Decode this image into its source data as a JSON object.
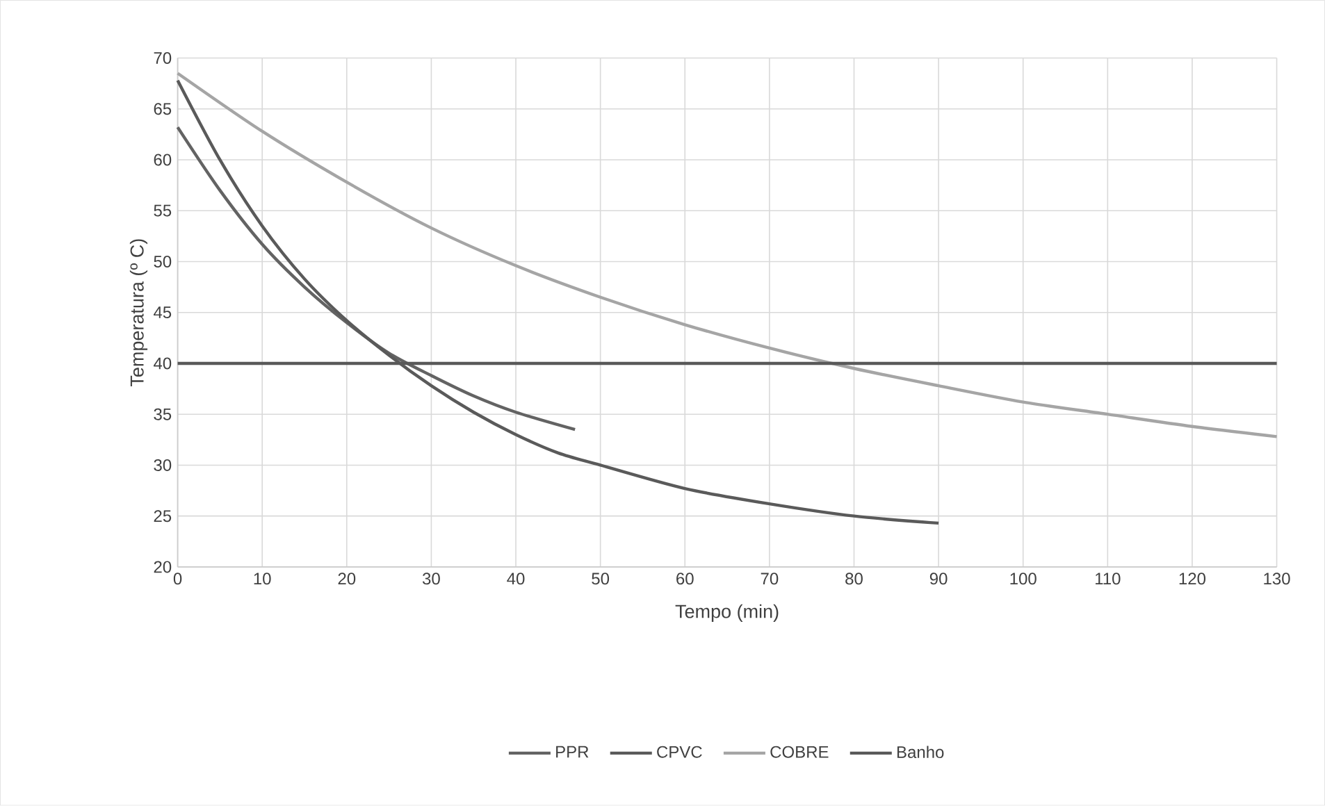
{
  "chart_data": {
    "type": "line",
    "xlabel": "Tempo (min)",
    "ylabel": "Temperatura (º C)",
    "xlim": [
      0,
      130
    ],
    "ylim": [
      20,
      70
    ],
    "xticks": [
      0,
      10,
      20,
      30,
      40,
      50,
      60,
      70,
      80,
      90,
      100,
      110,
      120,
      130
    ],
    "yticks": [
      20,
      25,
      30,
      35,
      40,
      45,
      50,
      55,
      60,
      65,
      70
    ],
    "grid": true,
    "legend": "bottom",
    "line_style": "solid",
    "marker": "none",
    "series": [
      {
        "name": "PPR",
        "color": "#636363",
        "x": [
          0,
          5,
          10,
          15,
          20,
          25,
          30,
          35,
          40,
          47
        ],
        "values": [
          63.2,
          57,
          51.7,
          47.5,
          44,
          41,
          38.8,
          36.8,
          35.2,
          33.5
        ]
      },
      {
        "name": "CPVC",
        "color": "#5a5a5a",
        "x": [
          0,
          5,
          10,
          15,
          20,
          25,
          30,
          35,
          40,
          45,
          50,
          60,
          70,
          80,
          90
        ],
        "values": [
          67.8,
          60,
          53.5,
          48.3,
          44.2,
          40.8,
          37.8,
          35.2,
          33,
          31.2,
          30,
          27.7,
          26.2,
          25,
          24.3
        ]
      },
      {
        "name": "COBRE",
        "color": "#a5a5a5",
        "x": [
          0,
          10,
          20,
          30,
          40,
          50,
          60,
          70,
          80,
          90,
          100,
          110,
          120,
          130
        ],
        "values": [
          68.5,
          62.8,
          57.8,
          53.3,
          49.6,
          46.5,
          43.8,
          41.5,
          39.5,
          37.8,
          36.2,
          35,
          33.8,
          32.8
        ]
      },
      {
        "name": "Banho",
        "color": "#595959",
        "x": [
          0,
          130
        ],
        "values": [
          40,
          40
        ]
      }
    ]
  }
}
